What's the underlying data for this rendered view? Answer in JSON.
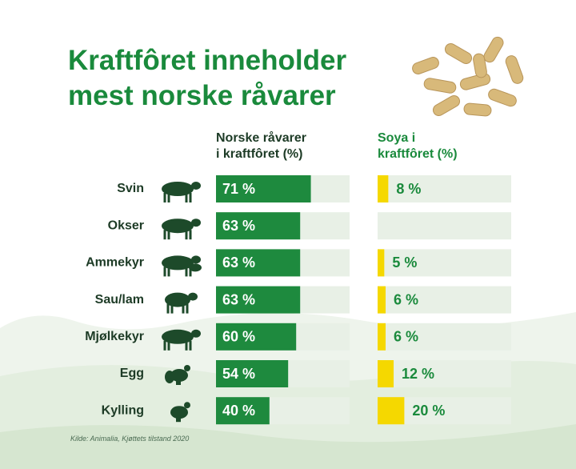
{
  "chart_data": {
    "type": "bar",
    "title": "Kraftfôret inneholder mest norske råvarer",
    "categories": [
      "Svin",
      "Okser",
      "Ammekyr",
      "Sau/lam",
      "Mjølkekyr",
      "Egg",
      "Kylling"
    ],
    "series": [
      {
        "name": "Norske råvarer i kraftfôret (%)",
        "color": "#1e8a3e",
        "values": [
          71,
          63,
          63,
          63,
          60,
          54,
          40
        ],
        "value_labels": [
          "71 %",
          "63 %",
          "63 %",
          "63 %",
          "60 %",
          "54 %",
          "40 %"
        ]
      },
      {
        "name": "Soya i kraftfôret (%)",
        "color": "#f5d800",
        "values": [
          8,
          null,
          5,
          6,
          6,
          12,
          20
        ],
        "value_labels": [
          "8 %",
          null,
          "5 %",
          "6 %",
          "6 %",
          "12 %",
          "20 %"
        ]
      }
    ],
    "xlim": [
      0,
      100
    ],
    "source": "Kilde: Animalia, Kjøttets tilstand 2020"
  }
}
